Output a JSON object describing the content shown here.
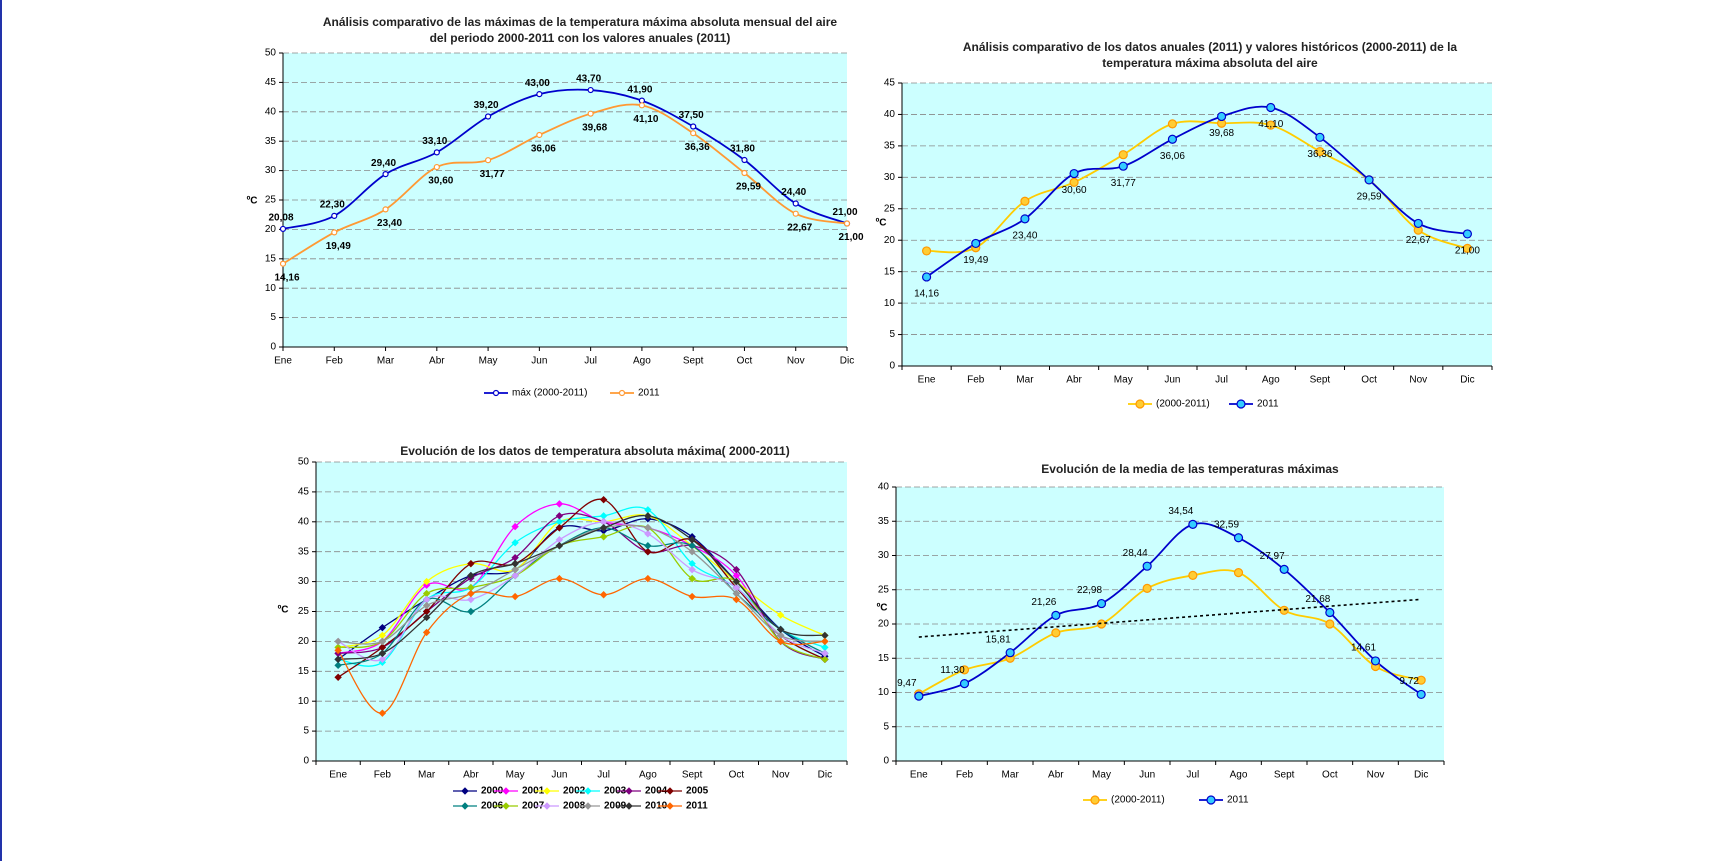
{
  "chart_data": [
    {
      "type": "line",
      "title": "Análisis comparativo de las máximas de la temperatura máxima absoluta mensual del aire del periodo 2000-2011 con los valores anuales (2011)",
      "ylabel": "ºC",
      "categories": [
        "Ene",
        "Feb",
        "Mar",
        "Abr",
        "May",
        "Jun",
        "Jul",
        "Ago",
        "Sept",
        "Oct",
        "Nov",
        "Dic"
      ],
      "ylim": [
        0,
        50
      ],
      "yticks": [
        0,
        5,
        10,
        15,
        20,
        25,
        30,
        35,
        40,
        45,
        50
      ],
      "grid": true,
      "legend": "bottom",
      "series": [
        {
          "name": "máx (2000-2011)",
          "color": "#0000cc",
          "values": [
            20.08,
            22.3,
            29.4,
            33.1,
            39.2,
            43.0,
            43.7,
            41.9,
            37.5,
            31.8,
            24.4,
            21.0
          ],
          "value_labels": [
            "20,08",
            "22,30",
            "29,40",
            "33,10",
            "39,20",
            "43,00",
            "43,70",
            "41,90",
            "37,50",
            "31,80",
            "24,40",
            "21,00"
          ]
        },
        {
          "name": "2011",
          "color": "#ff9933",
          "values": [
            14.16,
            19.49,
            23.4,
            30.6,
            31.77,
            36.06,
            39.68,
            41.1,
            36.36,
            29.59,
            22.67,
            21.0
          ],
          "value_labels": [
            "14,16",
            "19,49",
            "23,40",
            "30,60",
            "31,77",
            "36,06",
            "39,68",
            "41,10",
            "36,36",
            "29,59",
            "22,67",
            "21,00"
          ]
        }
      ]
    },
    {
      "type": "line",
      "title": "Análisis comparativo de los datos anuales (2011) y valores históricos (2000-2011) de la temperatura máxima absoluta del aire",
      "ylabel": "ºC",
      "categories": [
        "Ene",
        "Feb",
        "Mar",
        "Abr",
        "May",
        "Jun",
        "Jul",
        "Ago",
        "Sept",
        "Oct",
        "Nov",
        "Dic"
      ],
      "ylim": [
        0,
        45
      ],
      "yticks": [
        0,
        5,
        10,
        15,
        20,
        25,
        30,
        35,
        40,
        45
      ],
      "grid": true,
      "legend": "bottom",
      "series": [
        {
          "name": "(2000-2011)",
          "color": "#ffcc00",
          "values": [
            18.3,
            18.8,
            26.2,
            29.2,
            33.6,
            38.5,
            38.6,
            38.3,
            34.1,
            29.6,
            21.6,
            18.7
          ]
        },
        {
          "name": "2011",
          "color": "#0000cc",
          "values": [
            14.16,
            19.49,
            23.4,
            30.6,
            31.77,
            36.06,
            39.68,
            41.1,
            36.36,
            29.59,
            22.67,
            21.0
          ],
          "value_labels": [
            "14,16",
            "19,49",
            "23,40",
            "30,60",
            "31,77",
            "36,06",
            "39,68",
            "41,10",
            "36,36",
            "29,59",
            "22,67",
            "21,00"
          ]
        }
      ]
    },
    {
      "type": "line",
      "title": "Evolución de los datos de temperatura absoluta máxima( 2000-2011)",
      "ylabel": "ºC",
      "categories": [
        "Ene",
        "Feb",
        "Mar",
        "Abr",
        "May",
        "Jun",
        "Jul",
        "Ago",
        "Sept",
        "Oct",
        "Nov",
        "Dic"
      ],
      "ylim": [
        0,
        50
      ],
      "yticks": [
        0,
        5,
        10,
        15,
        20,
        25,
        30,
        35,
        40,
        45,
        50
      ],
      "grid": true,
      "legend": "bottom",
      "series": [
        {
          "name": "2000",
          "color": "#000080",
          "values": [
            17,
            22.3,
            27,
            31,
            32,
            39,
            38.5,
            40.5,
            37.5,
            30,
            22,
            17.5
          ]
        },
        {
          "name": "2001",
          "color": "#ff00ff",
          "values": [
            18,
            20,
            29.4,
            29,
            39.2,
            43,
            40,
            39,
            36,
            31,
            20,
            17
          ]
        },
        {
          "name": "2002",
          "color": "#ffff00",
          "values": [
            19,
            21,
            30,
            33,
            32,
            40,
            40,
            41,
            36,
            30,
            24.4,
            21
          ]
        },
        {
          "name": "2003",
          "color": "#00ffff",
          "values": [
            17,
            16.5,
            27,
            29,
            36.5,
            40,
            41,
            42,
            33,
            29,
            22,
            19
          ]
        },
        {
          "name": "2004",
          "color": "#800080",
          "values": [
            18,
            19,
            25,
            30.6,
            34,
            41,
            40,
            35,
            36,
            32,
            20,
            17
          ]
        },
        {
          "name": "2005",
          "color": "#800000",
          "values": [
            14,
            19,
            25,
            33,
            33,
            39,
            43.7,
            35,
            37,
            29,
            21,
            17
          ]
        },
        {
          "name": "2006",
          "color": "#008080",
          "values": [
            16,
            18,
            27,
            25,
            31,
            36,
            39,
            36,
            36,
            28,
            22,
            18
          ]
        },
        {
          "name": "2007",
          "color": "#99cc00",
          "values": [
            19,
            20,
            28,
            29,
            31,
            36,
            37.5,
            39,
            30.5,
            30,
            20,
            17
          ]
        },
        {
          "name": "2008",
          "color": "#cc99ff",
          "values": [
            20,
            17,
            27,
            27,
            31,
            37,
            40,
            38,
            32,
            29,
            21,
            18
          ]
        },
        {
          "name": "2009",
          "color": "#969696",
          "values": [
            20,
            20,
            26,
            28,
            32,
            36,
            39,
            39,
            35,
            28,
            21,
            20
          ]
        },
        {
          "name": "2010",
          "color": "#333333",
          "values": [
            17,
            18,
            24,
            31,
            33,
            36,
            39,
            41,
            37,
            30,
            22,
            21
          ]
        },
        {
          "name": "2011",
          "color": "#ff6600",
          "values": [
            18.5,
            8,
            21.5,
            28,
            27.5,
            30.5,
            27.8,
            30.5,
            27.5,
            27,
            20,
            20
          ]
        }
      ]
    },
    {
      "type": "line",
      "title": "Evolución de la media de las temperaturas máximas",
      "ylabel": "ºC",
      "categories": [
        "Ene",
        "Feb",
        "Mar",
        "Abr",
        "May",
        "Jun",
        "Jul",
        "Ago",
        "Sept",
        "Oct",
        "Nov",
        "Dic"
      ],
      "ylim": [
        0,
        40
      ],
      "yticks": [
        0,
        5,
        10,
        15,
        20,
        25,
        30,
        35,
        40
      ],
      "grid": true,
      "legend": "bottom",
      "series": [
        {
          "name": "(2000-2011)",
          "color": "#ffcc00",
          "values": [
            9.8,
            13.3,
            15,
            18.7,
            20,
            25.2,
            27.1,
            27.5,
            22,
            20,
            13.8,
            11.8
          ]
        },
        {
          "name": "2011",
          "color": "#0000cc",
          "values": [
            9.47,
            11.3,
            15.81,
            21.26,
            22.98,
            28.44,
            34.54,
            32.59,
            27.97,
            21.68,
            14.61,
            9.72
          ],
          "value_labels": [
            "9,47",
            "11,30",
            "15,81",
            "21,26",
            "22,98",
            "28,44",
            "34,54",
            "32,59",
            "27,97",
            "21,68",
            "14,61",
            "9,72"
          ]
        }
      ],
      "trendline": {
        "color": "#000000",
        "values": [
          18.1,
          23.6
        ]
      }
    }
  ]
}
